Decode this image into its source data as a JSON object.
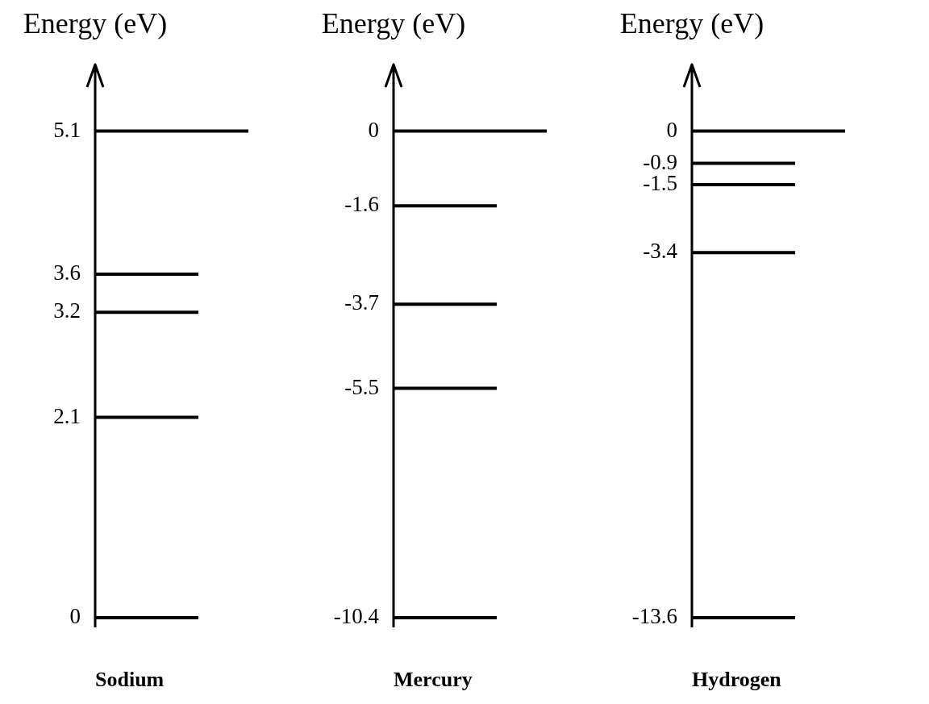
{
  "chart_data": [
    {
      "type": "other",
      "ylabel": "Energy (eV)",
      "xlabel": "Sodium",
      "values": [
        5.1,
        3.6,
        3.2,
        2.1,
        0
      ],
      "data_labels": true
    },
    {
      "type": "other",
      "ylabel": "Energy (eV)",
      "xlabel": "Mercury",
      "values": [
        0,
        -1.6,
        -3.7,
        -5.5,
        -10.4
      ],
      "data_labels": true
    },
    {
      "type": "other",
      "ylabel": "Energy (eV)",
      "xlabel": "Hydrogen",
      "values": [
        0,
        -0.9,
        -1.5,
        -3.4,
        -13.6
      ],
      "data_labels": true
    }
  ]
}
